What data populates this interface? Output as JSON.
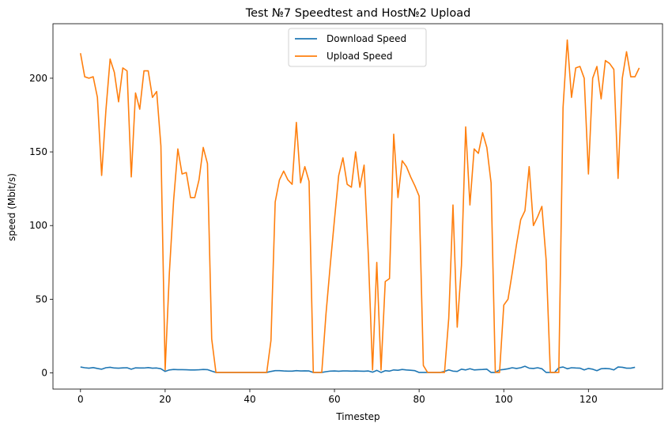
{
  "chart_data": {
    "type": "line",
    "title": "Test №7 Speedtest and Host№2 Upload",
    "xlabel": "Timestep",
    "ylabel": "speed (Mbit/s)",
    "xlim": [
      -6.5,
      137.5
    ],
    "ylim": [
      -11,
      237
    ],
    "xticks": [
      0,
      20,
      40,
      60,
      80,
      100,
      120
    ],
    "yticks": [
      0,
      50,
      100,
      150,
      200
    ],
    "grid": false,
    "legend_position": "top-center",
    "series": [
      {
        "name": "Download Speed",
        "color": "#1f77b4",
        "values": [
          4,
          3.5,
          3.2,
          3.6,
          3,
          2.5,
          3.5,
          3.8,
          3.3,
          3.2,
          3.4,
          3.5,
          2.5,
          3.4,
          3.3,
          3.3,
          3.6,
          3.2,
          3.3,
          2.8,
          1,
          2,
          2.3,
          2.2,
          2.2,
          2.1,
          2,
          2,
          2.1,
          2.3,
          2.2,
          1.2,
          0.3,
          0.3,
          0.3,
          0.3,
          0.3,
          0.3,
          0.3,
          0.3,
          0.3,
          0.3,
          0.3,
          0.3,
          0.3,
          1,
          1.5,
          1.5,
          1.3,
          1.2,
          1.2,
          1.5,
          1.3,
          1.4,
          1.3,
          0.3,
          0.3,
          0.3,
          0.8,
          1.2,
          1.3,
          1.1,
          1.3,
          1.3,
          1.2,
          1.3,
          1.2,
          1.1,
          1.3,
          0.5,
          1.7,
          0.3,
          1.5,
          1.2,
          2,
          1.8,
          2.3,
          2,
          1.8,
          1.5,
          0.3,
          0.3,
          0.3,
          0.3,
          0.3,
          0.3,
          1,
          2,
          1.2,
          1,
          2.5,
          2,
          2.8,
          2,
          2.2,
          2.3,
          2.5,
          0.3,
          0.3,
          2,
          2.3,
          2.8,
          3.5,
          3,
          3.5,
          4.5,
          3.2,
          3,
          3.5,
          2.8,
          0.3,
          0.3,
          0.3,
          3.5,
          4,
          2.8,
          3.5,
          3.3,
          3.2,
          2,
          3,
          2.5,
          1.5,
          2.8,
          3,
          2.8,
          2,
          4,
          3.8,
          3.2,
          3.2,
          3.8
        ]
      },
      {
        "name": "Upload Speed",
        "color": "#ff7f0e",
        "values": [
          217,
          201,
          200,
          201,
          187,
          134,
          178,
          213,
          204,
          184,
          207,
          205,
          133,
          190,
          179,
          205,
          205,
          187,
          191,
          154,
          2,
          68,
          117,
          152,
          135,
          136,
          119,
          119,
          131,
          153,
          142,
          23,
          0.3,
          0.3,
          0.3,
          0.3,
          0.3,
          0.3,
          0.3,
          0.3,
          0.3,
          0.3,
          0.3,
          0.3,
          0.3,
          22,
          116,
          131,
          137,
          131,
          128,
          170,
          129,
          140,
          130,
          0.3,
          0.3,
          0.3,
          40,
          73,
          104,
          134,
          146,
          128,
          126,
          150,
          126,
          141,
          80,
          2,
          75,
          2,
          62,
          64,
          162,
          119,
          144,
          140,
          133,
          127,
          120,
          5,
          0.3,
          0.3,
          0.3,
          0.3,
          0.3,
          37,
          114,
          31,
          73,
          167,
          114,
          152,
          149,
          163,
          153,
          129,
          0.3,
          0.3,
          46,
          50,
          68,
          87,
          104,
          110,
          140,
          100,
          106,
          113,
          77,
          0.3,
          0.3,
          0.3,
          180,
          226,
          187,
          207,
          208,
          200,
          135,
          200,
          208,
          186,
          212,
          210,
          206,
          132,
          200,
          218,
          201,
          201,
          207
        ]
      }
    ]
  }
}
